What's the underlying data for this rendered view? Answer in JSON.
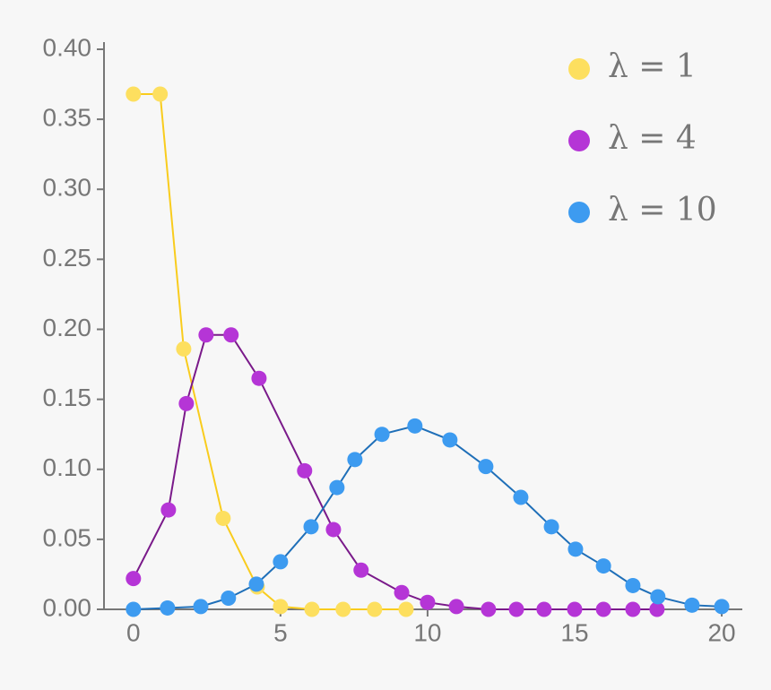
{
  "chart_data": {
    "type": "line",
    "xlim": [
      -1,
      20.7
    ],
    "ylim": [
      0,
      0.4
    ],
    "xticks": [
      0,
      5,
      10,
      15,
      20
    ],
    "yticks": [
      {
        "value": 0,
        "label": "0.00"
      },
      {
        "value": 0.05,
        "label": "0.05"
      },
      {
        "value": 0.1,
        "label": "0.10"
      },
      {
        "value": 0.15,
        "label": "0.15"
      },
      {
        "value": 0.2,
        "label": "0.20"
      },
      {
        "value": 0.25,
        "label": "0.25"
      },
      {
        "value": 0.3,
        "label": "0.30"
      },
      {
        "value": 0.35,
        "label": "0.35"
      },
      {
        "value": 0.4,
        "label": "0.40"
      }
    ],
    "legend": "upper right",
    "series": [
      {
        "name": "λ = 1",
        "color": "#f9cc1d",
        "marker_color": "#fddf5f",
        "x": [
          0,
          0.91,
          1.71,
          3.05,
          4.21,
          5.0,
          6.07,
          7.13,
          8.2,
          9.27
        ],
        "values": [
          0.368,
          0.368,
          0.186,
          0.065,
          0.016,
          0.002,
          0,
          0,
          0,
          0
        ]
      },
      {
        "name": "λ = 4",
        "color": "#7a1a8a",
        "marker_color": "#b535d6",
        "x": [
          0,
          1.19,
          1.8,
          2.47,
          3.32,
          4.27,
          5.82,
          6.8,
          7.74,
          9.12,
          10.0,
          10.98,
          12.07,
          13.02,
          13.96,
          15.0,
          15.98,
          16.98,
          17.8
        ],
        "values": [
          0.022,
          0.071,
          0.147,
          0.196,
          0.196,
          0.165,
          0.099,
          0.057,
          0.028,
          0.012,
          0.005,
          0.002,
          0,
          0,
          0,
          0,
          0,
          0,
          0
        ]
      },
      {
        "name": "λ = 10",
        "color": "#1f6fb8",
        "marker_color": "#3d9bf0",
        "x": [
          0,
          1.16,
          2.29,
          3.23,
          4.18,
          5.0,
          6.04,
          6.92,
          7.53,
          8.45,
          9.57,
          10.76,
          11.98,
          13.17,
          14.21,
          15.03,
          15.98,
          16.98,
          17.83,
          18.99,
          20
        ],
        "values": [
          0,
          0.001,
          0.002,
          0.008,
          0.018,
          0.034,
          0.059,
          0.087,
          0.107,
          0.125,
          0.131,
          0.121,
          0.102,
          0.08,
          0.059,
          0.043,
          0.031,
          0.017,
          0.009,
          0.003,
          0.002
        ]
      }
    ]
  }
}
